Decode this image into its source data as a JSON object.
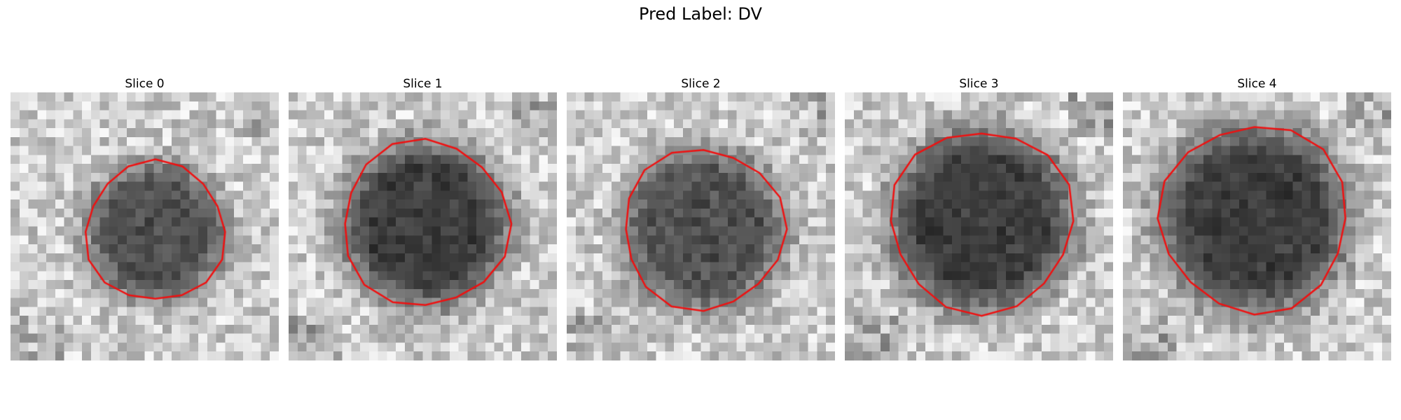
{
  "figure": {
    "title": "Pred Label: DV"
  },
  "panels": [
    {
      "title": "Slice 0",
      "center": [
        0.54,
        0.52
      ],
      "radius": 0.26,
      "dark": 0.55,
      "contour_color": "#ee1111"
    },
    {
      "title": "Slice 1",
      "center": [
        0.51,
        0.49
      ],
      "radius": 0.31,
      "dark": 0.65,
      "contour_color": "#ee1111"
    },
    {
      "title": "Slice 2",
      "center": [
        0.51,
        0.51
      ],
      "radius": 0.3,
      "dark": 0.55,
      "contour_color": "#ee1111"
    },
    {
      "title": "Slice 3",
      "center": [
        0.51,
        0.48
      ],
      "radius": 0.34,
      "dark": 0.65,
      "contour_color": "#ee1111"
    },
    {
      "title": "Slice 4",
      "center": [
        0.49,
        0.47
      ],
      "radius": 0.35,
      "dark": 0.65,
      "contour_color": "#ee1111"
    }
  ]
}
